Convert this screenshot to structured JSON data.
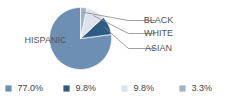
{
  "chart_data": {
    "type": "pie",
    "categories": [
      "HISPANIC",
      "ASIAN",
      "WHITE",
      "BLACK"
    ],
    "values": [
      77.0,
      9.8,
      9.8,
      3.3
    ],
    "value_labels": [
      "77.0%",
      "9.8%",
      "9.8%",
      "3.3%"
    ],
    "colors": [
      "#6d8fb3",
      "#2d5b84",
      "#dde3ec",
      "#a3b3c6"
    ],
    "data_labels": true
  }
}
